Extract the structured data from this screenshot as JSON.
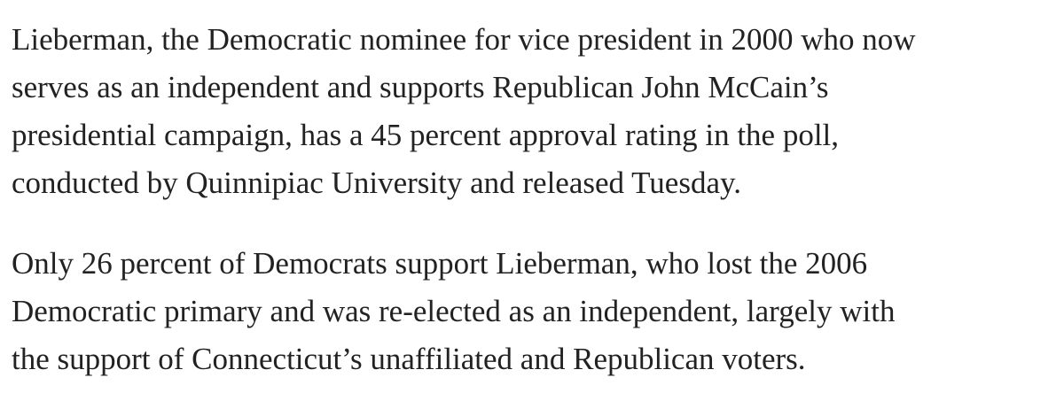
{
  "article": {
    "paragraphs": [
      {
        "lines": [
          "Lieberman, the Democratic nominee for vice president in 2000 who now",
          "serves as an independent and supports Republican John McCain’s",
          "presidential campaign, has a 45 percent approval rating in the poll,",
          "conducted by Quinnipiac University and released Tuesday."
        ]
      },
      {
        "lines": [
          "Only 26 percent of Democrats support Lieberman, who lost the 2006",
          "Democratic primary and was re-elected as an independent, largely with",
          "the support of Connecticut’s unaffiliated and Republican voters."
        ]
      }
    ]
  }
}
